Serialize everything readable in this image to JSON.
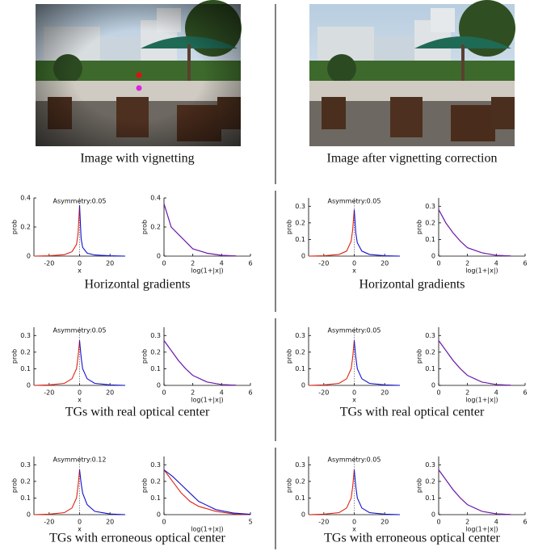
{
  "captions": [
    "Image with vignetting",
    "Image after vignetting correction",
    "Horizontal gradients",
    "Horizontal gradients",
    "TGs with real optical center",
    "TGs with real optical center",
    "TGs with erroneous optical center",
    "TGs with erroneous optical center"
  ],
  "chart_data": [
    {
      "type": "line",
      "annotation": "Asymmetry:0.05",
      "xlabel": "x",
      "ylabel": "prob",
      "xlim": [
        -30,
        30
      ],
      "xticks": [
        -20,
        0,
        20
      ],
      "ylim": [
        0,
        0.4
      ],
      "yticks": [
        0,
        0.2,
        0.4
      ],
      "series": [
        {
          "color": "#e02010",
          "x": [
            -30,
            -20,
            -10,
            -5,
            -2,
            -1,
            0
          ],
          "values": [
            0,
            0.002,
            0.01,
            0.03,
            0.08,
            0.15,
            0.35
          ]
        },
        {
          "color": "#1010d0",
          "x": [
            0,
            1,
            2,
            5,
            10,
            20,
            30
          ],
          "values": [
            0.35,
            0.12,
            0.06,
            0.02,
            0.008,
            0.002,
            0
          ]
        }
      ]
    },
    {
      "type": "line",
      "xlabel": "log(1+|x|)",
      "ylabel": "prob",
      "xlim": [
        0,
        6
      ],
      "xticks": [
        0,
        2,
        4,
        6
      ],
      "ylim": [
        0,
        0.4
      ],
      "yticks": [
        0,
        0.2,
        0.4
      ],
      "series": [
        {
          "color": "#e02010",
          "x": [
            0,
            0.5,
            1,
            1.5,
            2,
            3,
            4,
            5
          ],
          "values": [
            0.36,
            0.2,
            0.15,
            0.1,
            0.05,
            0.02,
            0.005,
            0.001
          ]
        },
        {
          "color": "#6020c0",
          "x": [
            0,
            0.5,
            1,
            1.5,
            2,
            3,
            4,
            5
          ],
          "values": [
            0.36,
            0.2,
            0.15,
            0.1,
            0.05,
            0.02,
            0.005,
            0.001
          ]
        }
      ]
    },
    {
      "type": "line",
      "annotation": "Asymmetry:0.05",
      "xlabel": "x",
      "ylabel": "prob",
      "xlim": [
        -30,
        30
      ],
      "xticks": [
        -20,
        0,
        20
      ],
      "ylim": [
        0,
        0.35
      ],
      "yticks": [
        0,
        0.1,
        0.2,
        0.3
      ],
      "series": [
        {
          "color": "#e02010",
          "x": [
            -30,
            -20,
            -10,
            -5,
            -2,
            -1,
            0
          ],
          "values": [
            0,
            0.002,
            0.01,
            0.03,
            0.09,
            0.16,
            0.28
          ]
        },
        {
          "color": "#1010d0",
          "x": [
            0,
            1,
            2,
            5,
            10,
            20,
            30
          ],
          "values": [
            0.28,
            0.14,
            0.08,
            0.03,
            0.01,
            0.002,
            0
          ]
        }
      ]
    },
    {
      "type": "line",
      "xlabel": "log(1+|x|)",
      "ylabel": "prob",
      "xlim": [
        0,
        6
      ],
      "xticks": [
        0,
        2,
        4,
        6
      ],
      "ylim": [
        0,
        0.35
      ],
      "yticks": [
        0,
        0.1,
        0.2,
        0.3
      ],
      "series": [
        {
          "color": "#e02010",
          "x": [
            0,
            0.5,
            1,
            1.5,
            2,
            3,
            4,
            5
          ],
          "values": [
            0.28,
            0.2,
            0.14,
            0.09,
            0.05,
            0.02,
            0.005,
            0.001
          ]
        },
        {
          "color": "#6020c0",
          "x": [
            0,
            0.5,
            1,
            1.5,
            2,
            3,
            4,
            5
          ],
          "values": [
            0.28,
            0.2,
            0.14,
            0.09,
            0.05,
            0.02,
            0.005,
            0.001
          ]
        }
      ]
    },
    {
      "type": "line",
      "annotation": "Asymmetry:0.05",
      "xlabel": "x",
      "ylabel": "prob",
      "xlim": [
        -30,
        30
      ],
      "xticks": [
        -20,
        0,
        20
      ],
      "ylim": [
        0,
        0.35
      ],
      "yticks": [
        0,
        0.1,
        0.2,
        0.3
      ],
      "series": [
        {
          "color": "#e02010",
          "x": [
            -30,
            -20,
            -10,
            -5,
            -2,
            -1,
            0
          ],
          "values": [
            0,
            0.003,
            0.012,
            0.04,
            0.1,
            0.17,
            0.27
          ]
        },
        {
          "color": "#1010d0",
          "x": [
            0,
            1,
            2,
            5,
            10,
            20,
            30
          ],
          "values": [
            0.27,
            0.17,
            0.1,
            0.04,
            0.012,
            0.003,
            0
          ]
        }
      ]
    },
    {
      "type": "line",
      "xlabel": "log(1+|x|)",
      "ylabel": "prob",
      "xlim": [
        0,
        6
      ],
      "xticks": [
        0,
        2,
        4,
        6
      ],
      "ylim": [
        0,
        0.35
      ],
      "yticks": [
        0,
        0.1,
        0.2,
        0.3
      ],
      "series": [
        {
          "color": "#e02010",
          "x": [
            0,
            0.5,
            1,
            1.5,
            2,
            3,
            4,
            5
          ],
          "values": [
            0.27,
            0.21,
            0.15,
            0.1,
            0.06,
            0.02,
            0.005,
            0.001
          ]
        },
        {
          "color": "#6020c0",
          "x": [
            0,
            0.5,
            1,
            1.5,
            2,
            3,
            4,
            5
          ],
          "values": [
            0.27,
            0.21,
            0.15,
            0.1,
            0.06,
            0.02,
            0.005,
            0.001
          ]
        }
      ]
    },
    {
      "type": "line",
      "annotation": "Asymmetry:0.05",
      "xlabel": "x",
      "ylabel": "prob",
      "xlim": [
        -30,
        30
      ],
      "xticks": [
        -20,
        0,
        20
      ],
      "ylim": [
        0,
        0.35
      ],
      "yticks": [
        0,
        0.1,
        0.2,
        0.3
      ],
      "series": [
        {
          "color": "#e02010",
          "x": [
            -30,
            -20,
            -10,
            -5,
            -2,
            -1,
            0
          ],
          "values": [
            0,
            0.003,
            0.012,
            0.04,
            0.1,
            0.17,
            0.27
          ]
        },
        {
          "color": "#1010d0",
          "x": [
            0,
            1,
            2,
            5,
            10,
            20,
            30
          ],
          "values": [
            0.27,
            0.17,
            0.1,
            0.04,
            0.012,
            0.003,
            0
          ]
        }
      ]
    },
    {
      "type": "line",
      "xlabel": "log(1+|x|)",
      "ylabel": "prob",
      "xlim": [
        0,
        6
      ],
      "xticks": [
        0,
        2,
        4,
        6
      ],
      "ylim": [
        0,
        0.35
      ],
      "yticks": [
        0,
        0.1,
        0.2,
        0.3
      ],
      "series": [
        {
          "color": "#e02010",
          "x": [
            0,
            0.5,
            1,
            1.5,
            2,
            3,
            4,
            5
          ],
          "values": [
            0.27,
            0.21,
            0.15,
            0.1,
            0.06,
            0.02,
            0.005,
            0.001
          ]
        },
        {
          "color": "#6020c0",
          "x": [
            0,
            0.5,
            1,
            1.5,
            2,
            3,
            4,
            5
          ],
          "values": [
            0.27,
            0.21,
            0.15,
            0.1,
            0.06,
            0.02,
            0.005,
            0.001
          ]
        }
      ]
    },
    {
      "type": "line",
      "annotation": "Asymmetry:0.12",
      "xlabel": "x",
      "ylabel": "prob",
      "xlim": [
        -30,
        30
      ],
      "xticks": [
        -20,
        0,
        20
      ],
      "ylim": [
        0,
        0.35
      ],
      "yticks": [
        0,
        0.1,
        0.2,
        0.3
      ],
      "series": [
        {
          "color": "#e02010",
          "x": [
            -30,
            -20,
            -10,
            -5,
            -2,
            -1,
            0
          ],
          "values": [
            0,
            0.003,
            0.012,
            0.04,
            0.1,
            0.17,
            0.27
          ]
        },
        {
          "color": "#1010d0",
          "x": [
            0,
            1,
            2,
            5,
            10,
            20,
            30
          ],
          "values": [
            0.27,
            0.19,
            0.13,
            0.06,
            0.02,
            0.004,
            0
          ]
        }
      ]
    },
    {
      "type": "line",
      "xlabel": "log(1+|x|)",
      "ylabel": "prob",
      "xlim": [
        0,
        5
      ],
      "xticks": [
        0,
        5
      ],
      "ylim": [
        0,
        0.35
      ],
      "yticks": [
        0,
        0.1,
        0.2,
        0.3
      ],
      "series": [
        {
          "color": "#e02010",
          "x": [
            0,
            0.5,
            1,
            1.5,
            2,
            3,
            4,
            5
          ],
          "values": [
            0.27,
            0.2,
            0.13,
            0.08,
            0.05,
            0.02,
            0.005,
            0
          ]
        },
        {
          "color": "#1010d0",
          "x": [
            0,
            0.5,
            1,
            1.5,
            2,
            3,
            4,
            5
          ],
          "values": [
            0.27,
            0.23,
            0.18,
            0.13,
            0.08,
            0.03,
            0.01,
            0.002
          ]
        }
      ]
    },
    {
      "type": "line",
      "annotation": "Asymmetry:0.05",
      "xlabel": "x",
      "ylabel": "prob",
      "xlim": [
        -30,
        30
      ],
      "xticks": [
        -20,
        0,
        20
      ],
      "ylim": [
        0,
        0.35
      ],
      "yticks": [
        0,
        0.1,
        0.2,
        0.3
      ],
      "series": [
        {
          "color": "#e02010",
          "x": [
            -30,
            -20,
            -10,
            -5,
            -2,
            -1,
            0
          ],
          "values": [
            0,
            0.003,
            0.012,
            0.04,
            0.1,
            0.17,
            0.27
          ]
        },
        {
          "color": "#1010d0",
          "x": [
            0,
            1,
            2,
            5,
            10,
            20,
            30
          ],
          "values": [
            0.27,
            0.17,
            0.1,
            0.04,
            0.012,
            0.003,
            0
          ]
        }
      ]
    },
    {
      "type": "line",
      "xlabel": "log(1+|x|)",
      "ylabel": "prob",
      "xlim": [
        0,
        6
      ],
      "xticks": [
        0,
        2,
        4,
        6
      ],
      "ylim": [
        0,
        0.35
      ],
      "yticks": [
        0,
        0.1,
        0.2,
        0.3
      ],
      "series": [
        {
          "color": "#e02010",
          "x": [
            0,
            0.5,
            1,
            1.5,
            2,
            3,
            4,
            5
          ],
          "values": [
            0.27,
            0.21,
            0.15,
            0.1,
            0.06,
            0.02,
            0.005,
            0.001
          ]
        },
        {
          "color": "#6020c0",
          "x": [
            0,
            0.5,
            1,
            1.5,
            2,
            3,
            4,
            5
          ],
          "values": [
            0.27,
            0.21,
            0.15,
            0.1,
            0.06,
            0.02,
            0.005,
            0.001
          ]
        }
      ]
    }
  ]
}
